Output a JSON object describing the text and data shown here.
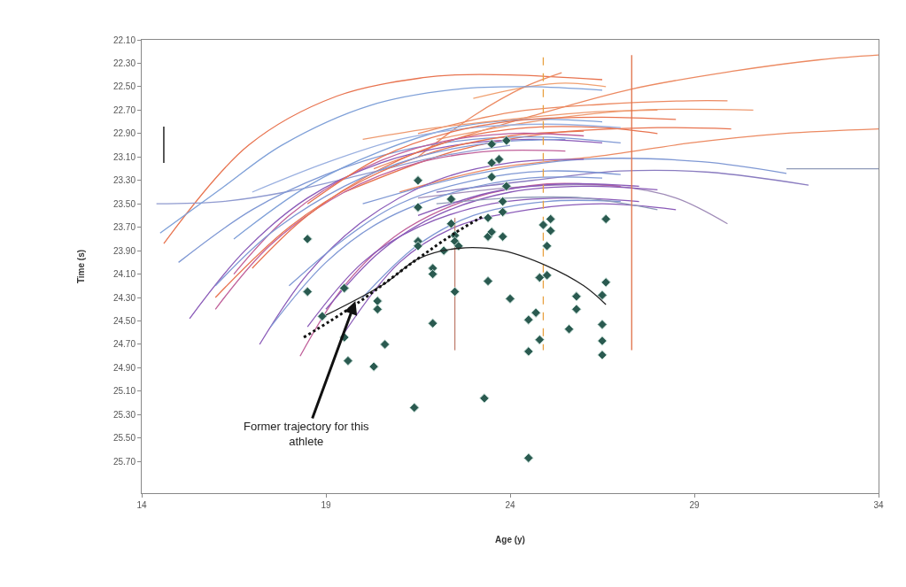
{
  "chart_data": {
    "type": "line",
    "xlabel": "Age (y)",
    "ylabel": "Time (s)",
    "xlim": [
      14,
      34
    ],
    "ylim": [
      25.97,
      22.1
    ],
    "xticks": [
      14,
      19,
      24,
      29,
      34
    ],
    "yticks": [
      {
        "value": 22.1,
        "label": "22.10"
      },
      {
        "value": 22.3,
        "label": "22.30"
      },
      {
        "value": 22.5,
        "label": "22.50"
      },
      {
        "value": 22.7,
        "label": "22.70"
      },
      {
        "value": 22.9,
        "label": "22.90"
      },
      {
        "value": 23.1,
        "label": "23.10"
      },
      {
        "value": 23.3,
        "label": "23.30"
      },
      {
        "value": 23.5,
        "label": "23.50"
      },
      {
        "value": 23.7,
        "label": "23.70"
      },
      {
        "value": 23.9,
        "label": "23.90"
      },
      {
        "value": 24.1,
        "label": "24.10"
      },
      {
        "value": 24.3,
        "label": "24.30"
      },
      {
        "value": 24.5,
        "label": "24.50"
      },
      {
        "value": 24.7,
        "label": "24.70"
      },
      {
        "value": 24.9,
        "label": "24.90"
      },
      {
        "value": 25.1,
        "label": "25.10"
      },
      {
        "value": 25.3,
        "label": "25.30"
      },
      {
        "value": 25.5,
        "label": "25.50"
      },
      {
        "value": 25.7,
        "label": "25.70"
      }
    ],
    "annotations": [
      {
        "text": "Former trajectory for this\nathlete",
        "x": 19.8,
        "y": 24.33
      }
    ],
    "series": [
      {
        "color": "#e8734f",
        "x": [
          14.6,
          16.9,
          19.3,
          21.7,
          22.5,
          24.0,
          26.5
        ],
        "values": [
          23.84,
          23.0,
          22.58,
          22.42,
          22.4,
          22.4,
          22.44
        ]
      },
      {
        "color": "#ec8a62",
        "x": [
          20.3,
          22.5,
          24.6,
          27.3,
          30.0,
          32.4,
          34.0
        ],
        "values": [
          23.2,
          22.95,
          22.75,
          22.52,
          22.37,
          22.27,
          22.23
        ]
      },
      {
        "color": "#ec8a62",
        "x": [
          21.0,
          23.5,
          26.5,
          28.9,
          31.4,
          34.0
        ],
        "values": [
          23.4,
          23.2,
          23.09,
          22.98,
          22.9,
          22.86
        ]
      },
      {
        "color": "#8f9ab8",
        "x": [
          31.5,
          34.0
        ],
        "values": [
          23.2,
          23.2
        ]
      },
      {
        "color": "#8a7cc0",
        "x": [
          22.0,
          24.6,
          27.0,
          29.4,
          32.1
        ],
        "values": [
          23.4,
          23.3,
          23.22,
          23.23,
          23.34
        ]
      },
      {
        "color": "#7f98d4",
        "x": [
          20.0,
          23.0,
          26.0,
          29.2,
          31.5
        ],
        "values": [
          23.5,
          23.25,
          23.12,
          23.14,
          23.24
        ]
      },
      {
        "color": "#a08cb8",
        "x": [
          21.5,
          24.5,
          26.9,
          28.5,
          29.9
        ],
        "values": [
          23.45,
          23.35,
          23.35,
          23.45,
          23.67
        ]
      },
      {
        "color": "#e8734f",
        "x": [
          19.5,
          22.5,
          25.0,
          28.0,
          30.0
        ],
        "values": [
          23.4,
          23.05,
          22.9,
          22.85,
          22.86
        ]
      },
      {
        "color": "#ec8a62",
        "x": [
          21.5,
          24.0,
          26.5,
          28.9,
          29.9
        ],
        "values": [
          22.9,
          22.72,
          22.65,
          22.62,
          22.62
        ]
      },
      {
        "color": "#ee9a70",
        "x": [
          22.0,
          25.0,
          27.5,
          30.6
        ],
        "values": [
          22.95,
          22.78,
          22.7,
          22.7
        ]
      },
      {
        "color": "#f0a070",
        "x": [
          23.0,
          24.5,
          25.5,
          26.6
        ],
        "values": [
          22.6,
          22.5,
          22.47,
          22.5
        ]
      },
      {
        "color": "#ec8a62",
        "x": [
          21.5,
          23.0,
          24.4,
          25.4
        ],
        "values": [
          23.1,
          22.75,
          22.5,
          22.38
        ]
      },
      {
        "color": "#8f9ad0",
        "x": [
          14.4,
          16.2,
          17.9,
          20.0,
          22.0,
          24.0
        ],
        "values": [
          23.5,
          23.48,
          23.4,
          23.25,
          23.1,
          23.0
        ]
      },
      {
        "color": "#7fa0d8",
        "x": [
          14.5,
          16.2,
          17.8,
          20.2,
          22.6,
          24.5,
          26.5
        ],
        "values": [
          23.75,
          23.36,
          23.0,
          22.66,
          22.52,
          22.5,
          22.53
        ]
      },
      {
        "color": "#8a5ab8",
        "x": [
          15.3,
          16.8,
          18.5,
          20.5,
          22.5,
          24.5,
          26.5
        ],
        "values": [
          24.48,
          23.9,
          23.45,
          23.15,
          23.0,
          22.95,
          22.98
        ]
      },
      {
        "color": "#c0609a",
        "x": [
          16.0,
          17.5,
          19.5,
          21.5,
          23.5,
          25.5
        ],
        "values": [
          24.4,
          23.85,
          23.4,
          23.15,
          23.05,
          23.05
        ]
      },
      {
        "color": "#7f98d4",
        "x": [
          15.0,
          17.0,
          19.0,
          21.0,
          23.0,
          25.0,
          27.0
        ],
        "values": [
          24.0,
          23.55,
          23.25,
          23.05,
          22.95,
          22.93,
          22.98
        ]
      },
      {
        "color": "#e8734f",
        "x": [
          16.0,
          18.0,
          20.0,
          22.0,
          24.0,
          26.0
        ],
        "values": [
          24.3,
          23.7,
          23.3,
          23.05,
          22.92,
          22.88
        ]
      },
      {
        "color": "#8a5ab8",
        "x": [
          17.2,
          18.5,
          20.0,
          22.0,
          24.0,
          26.0
        ],
        "values": [
          24.7,
          24.1,
          23.65,
          23.3,
          23.15,
          23.12
        ]
      },
      {
        "color": "#7f98d4",
        "x": [
          17.5,
          19.0,
          20.5,
          22.5,
          24.5,
          26.5
        ],
        "values": [
          24.55,
          24.0,
          23.65,
          23.4,
          23.28,
          23.28
        ]
      },
      {
        "color": "#c0609a",
        "x": [
          18.3,
          19.5,
          21.0,
          23.0,
          25.0,
          27.0
        ],
        "values": [
          24.8,
          24.2,
          23.75,
          23.45,
          23.33,
          23.35
        ]
      },
      {
        "color": "#8a5ab8",
        "x": [
          18.5,
          20.0,
          21.5,
          23.5,
          25.5,
          27.5
        ],
        "values": [
          24.55,
          24.0,
          23.7,
          23.5,
          23.45,
          23.48
        ]
      },
      {
        "color": "#7f98d4",
        "x": [
          18.0,
          19.5,
          21.0,
          23.0,
          25.0,
          27.0
        ],
        "values": [
          24.2,
          23.8,
          23.5,
          23.3,
          23.22,
          23.25
        ]
      },
      {
        "color": "#e8734f",
        "x": [
          17.0,
          18.5,
          20.5,
          22.5,
          24.5,
          26.5,
          28.0
        ],
        "values": [
          24.05,
          23.6,
          23.2,
          22.95,
          22.85,
          22.85,
          22.9
        ]
      },
      {
        "color": "#7fa0d8",
        "x": [
          16.5,
          18.5,
          20.5,
          22.5,
          24.5,
          26.5
        ],
        "values": [
          23.8,
          23.35,
          23.05,
          22.85,
          22.78,
          22.8
        ]
      },
      {
        "color": "#8a5ab8",
        "x": [
          19.0,
          20.5,
          22.0,
          24.0,
          26.0,
          28.0
        ],
        "values": [
          24.4,
          23.9,
          23.6,
          23.4,
          23.35,
          23.38
        ]
      },
      {
        "color": "#c0609a",
        "x": [
          16.5,
          18.0,
          20.0,
          22.0,
          24.0,
          26.0
        ],
        "values": [
          24.1,
          23.6,
          23.2,
          22.98,
          22.9,
          22.92
        ]
      },
      {
        "color": "#9ab0e0",
        "x": [
          17.0,
          19.0,
          21.0,
          23.0,
          25.0,
          27.0
        ],
        "values": [
          23.4,
          23.15,
          22.95,
          22.85,
          22.82,
          22.85
        ]
      },
      {
        "color": "#ee9a70",
        "x": [
          20.0,
          22.0,
          24.0,
          26.0,
          28.0
        ],
        "values": [
          22.95,
          22.85,
          22.78,
          22.72,
          22.7
        ]
      },
      {
        "color": "#8a5ab8",
        "x": [
          19.5,
          21.0,
          22.5,
          24.5,
          26.5,
          28.5
        ],
        "values": [
          24.6,
          24.0,
          23.7,
          23.55,
          23.5,
          23.55
        ]
      },
      {
        "color": "#7f98d4",
        "x": [
          20.0,
          21.5,
          23.0,
          25.0,
          27.0
        ],
        "values": [
          24.3,
          23.85,
          23.6,
          23.48,
          23.48
        ]
      },
      {
        "color": "#8f9ab8",
        "x": [
          22.0,
          24.0,
          26.0,
          28.0
        ],
        "values": [
          23.5,
          23.45,
          23.45,
          23.55
        ]
      },
      {
        "color": "#8a5ab8",
        "x": [
          21.5,
          23.5,
          25.5,
          27.5
        ],
        "values": [
          23.6,
          23.4,
          23.33,
          23.35
        ]
      },
      {
        "color": "#e8734f",
        "x": [
          18.5,
          20.5,
          22.5,
          24.5,
          26.5,
          28.5
        ],
        "values": [
          23.5,
          23.1,
          22.88,
          22.78,
          22.76,
          22.78
        ]
      },
      {
        "color": "#7f98d4",
        "x": [
          16.0,
          17.5,
          19.5,
          21.5,
          23.5,
          25.5
        ],
        "values": [
          24.2,
          23.75,
          23.35,
          23.1,
          22.98,
          22.95
        ]
      },
      {
        "color": "#c08070",
        "x": [
          22.5,
          22.5
        ],
        "values": [
          23.62,
          24.75
        ]
      },
      {
        "color": "#e8a040",
        "line_style": "dashed",
        "x": [
          24.9,
          24.9
        ],
        "values": [
          22.25,
          24.75
        ]
      },
      {
        "color": "#e07048",
        "x": [
          27.3,
          27.3
        ],
        "values": [
          22.23,
          24.75
        ]
      },
      {
        "color": "#000000",
        "x": [
          14.6,
          14.6
        ],
        "values": [
          22.84,
          23.15
        ]
      },
      {
        "type": "scatter",
        "color": "#2a5a50",
        "marker": "diamond",
        "x": [
          21.5,
          23.5,
          23.9,
          23.7,
          23.5,
          23.5,
          23.9,
          22.4,
          21.5,
          23.8,
          23.8,
          22.4,
          23.4,
          25.1,
          24.9,
          25.1,
          26.6,
          18.5,
          21.5,
          21.5,
          22.5,
          22.5,
          22.6,
          22.2,
          23.4,
          23.5,
          23.8,
          25.0,
          21.9,
          21.9,
          23.4,
          24.8,
          25.0,
          26.6,
          18.5,
          19.5,
          22.5,
          20.4,
          20.4,
          24.0,
          25.8,
          26.5,
          25.8,
          18.9,
          21.9,
          24.7,
          24.5,
          25.6,
          26.5,
          19.5,
          24.8,
          26.5,
          20.6,
          24.5,
          26.5,
          19.6,
          20.3,
          23.3,
          21.4,
          24.5
        ],
        "values": [
          23.3,
          22.99,
          22.96,
          23.12,
          23.15,
          23.27,
          23.35,
          23.46,
          23.53,
          23.48,
          23.57,
          23.67,
          23.62,
          23.63,
          23.68,
          23.73,
          23.63,
          23.8,
          23.82,
          23.86,
          23.77,
          23.82,
          23.86,
          23.9,
          23.78,
          23.74,
          23.78,
          23.86,
          24.05,
          24.1,
          24.16,
          24.13,
          24.11,
          24.17,
          24.25,
          24.22,
          24.25,
          24.33,
          24.4,
          24.31,
          24.29,
          24.28,
          24.4,
          24.46,
          24.52,
          24.43,
          24.49,
          24.57,
          24.53,
          24.64,
          24.66,
          24.67,
          24.7,
          24.76,
          24.79,
          24.84,
          24.89,
          25.16,
          25.24,
          25.67
        ]
      },
      {
        "color": "#222222",
        "x": [
          19.0,
          20.6,
          21.5,
          22.6,
          23.8,
          25.0,
          26.0,
          26.6
        ],
        "values": [
          24.45,
          24.18,
          23.97,
          23.88,
          23.9,
          24.03,
          24.2,
          24.36
        ]
      },
      {
        "color": "#111111",
        "line_style": "dotted",
        "x": [
          18.4,
          19.8,
          21.4,
          22.5,
          23.3
        ],
        "values": [
          24.64,
          24.36,
          23.99,
          23.75,
          23.6
        ]
      }
    ]
  }
}
